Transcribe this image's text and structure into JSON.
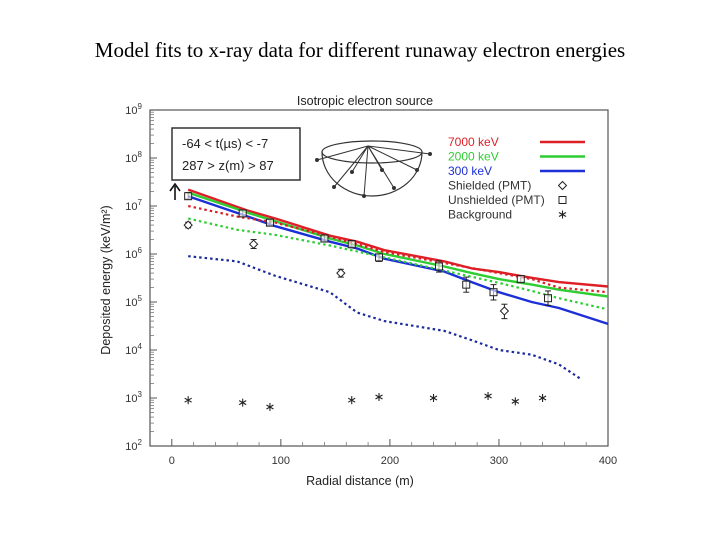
{
  "slide": {
    "title": "Model fits to x-ray data for different runaway electron energies"
  },
  "chart_data": {
    "type": "line",
    "title": "Isotropic electron source",
    "xlabel": "Radial distance (m)",
    "ylabel": "Deposited energy (keV/m²)",
    "xlim": [
      -20,
      400
    ],
    "ylim_log10": [
      2,
      9
    ],
    "y_scale": "log",
    "x_ticks": [
      0,
      100,
      200,
      300,
      400
    ],
    "y_ticks": [
      {
        "exp": 2,
        "base": "10",
        "sup": "2"
      },
      {
        "exp": 3,
        "base": "10",
        "sup": "3"
      },
      {
        "exp": 4,
        "base": "10",
        "sup": "4"
      },
      {
        "exp": 5,
        "base": "10",
        "sup": "5"
      },
      {
        "exp": 6,
        "base": "10",
        "sup": "6"
      },
      {
        "exp": 7,
        "base": "10",
        "sup": "7"
      },
      {
        "exp": 8,
        "base": "10",
        "sup": "8"
      },
      {
        "exp": 9,
        "base": "10",
        "sup": "9"
      }
    ],
    "grid": false,
    "legend_position": "top-right",
    "condition_box": {
      "line1": "-64 < t(µs) < -7",
      "line2": "287 > z(m) > 87"
    },
    "colors": {
      "red": "#dd1f26",
      "green": "#2fcc33",
      "blue": "#1d2fd6",
      "darkblue": "#1c2a9c"
    },
    "series": [
      {
        "name": "7000 keV",
        "kind": "solid",
        "color": "#dd1f26",
        "points": [
          [
            15,
            22000000.0
          ],
          [
            70,
            8000000.0
          ],
          [
            95,
            5500000.0
          ],
          [
            145,
            2400000.0
          ],
          [
            170,
            1800000.0
          ],
          [
            195,
            1200000.0
          ],
          [
            250,
            700000.0
          ],
          [
            275,
            500000.0
          ],
          [
            300,
            420000.0
          ],
          [
            330,
            320000.0
          ],
          [
            355,
            260000.0
          ],
          [
            400,
            210000.0
          ]
        ]
      },
      {
        "name": "2000 keV",
        "kind": "solid",
        "color": "#2fcc33",
        "points": [
          [
            15,
            19000000.0
          ],
          [
            70,
            7200000.0
          ],
          [
            95,
            4800000.0
          ],
          [
            145,
            2100000.0
          ],
          [
            170,
            1500000.0
          ],
          [
            195,
            1000000.0
          ],
          [
            250,
            550000.0
          ],
          [
            275,
            400000.0
          ],
          [
            300,
            300000.0
          ],
          [
            330,
            230000.0
          ],
          [
            355,
            180000.0
          ],
          [
            400,
            130000.0
          ]
        ]
      },
      {
        "name": "300 keV",
        "kind": "solid",
        "color": "#1d2fd6",
        "points": [
          [
            15,
            16000000.0
          ],
          [
            70,
            6000000.0
          ],
          [
            95,
            3800000.0
          ],
          [
            145,
            1800000.0
          ],
          [
            170,
            1300000.0
          ],
          [
            195,
            800000.0
          ],
          [
            250,
            430000.0
          ],
          [
            275,
            260000.0
          ],
          [
            300,
            160000.0
          ],
          [
            330,
            100000.0
          ],
          [
            355,
            75000.0
          ],
          [
            400,
            35000.0
          ]
        ]
      },
      {
        "name": "",
        "kind": "dotted",
        "color": "#dd1f26",
        "points": [
          [
            15,
            10000000.0
          ],
          [
            60,
            6000000.0
          ],
          [
            95,
            4500000.0
          ],
          [
            145,
            2300000.0
          ],
          [
            195,
            1100000.0
          ],
          [
            250,
            650000.0
          ],
          [
            300,
            400000.0
          ],
          [
            330,
            300000.0
          ],
          [
            355,
            200000.0
          ],
          [
            400,
            160000.0
          ]
        ]
      },
      {
        "name": "",
        "kind": "dotted",
        "color": "#2fcc33",
        "points": [
          [
            15,
            5500000.0
          ],
          [
            60,
            3200000.0
          ],
          [
            95,
            2500000.0
          ],
          [
            145,
            1500000.0
          ],
          [
            195,
            850000.0
          ],
          [
            250,
            450000.0
          ],
          [
            300,
            250000.0
          ],
          [
            330,
            170000.0
          ],
          [
            355,
            120000.0
          ],
          [
            400,
            70000.0
          ]
        ]
      },
      {
        "name": "",
        "kind": "dotted",
        "color": "#1c2a9c",
        "points": [
          [
            15,
            900000.0
          ],
          [
            60,
            700000.0
          ],
          [
            95,
            350000.0
          ],
          [
            145,
            160000.0
          ],
          [
            170,
            60000.0
          ],
          [
            195,
            40000.0
          ],
          [
            250,
            25000.0
          ],
          [
            275,
            16000.0
          ],
          [
            300,
            10000.0
          ],
          [
            330,
            8000.0
          ],
          [
            355,
            5000.0
          ],
          [
            375,
            2500.0
          ]
        ]
      }
    ],
    "shielded": {
      "name": "Shielded (PMT)",
      "points": [
        {
          "x": 15,
          "y": 4000000.0,
          "lo": 3500000.0,
          "hi": 4600000.0
        },
        {
          "x": 75,
          "y": 1600000.0,
          "lo": 1300000.0,
          "hi": 2000000.0
        },
        {
          "x": 155,
          "y": 400000.0,
          "lo": 330000.0,
          "hi": 480000.0
        },
        {
          "x": 305,
          "y": 65000.0,
          "lo": 45000.0,
          "hi": 90000.0
        }
      ]
    },
    "unshielded": {
      "name": "Unshielded (PMT)",
      "points": [
        {
          "x": 15,
          "y": 16000000.0,
          "lo": 14000000.0,
          "hi": 19000000.0
        },
        {
          "x": 65,
          "y": 7000000.0,
          "lo": 6000000.0,
          "hi": 8200000.0
        },
        {
          "x": 90,
          "y": 4500000.0,
          "lo": 3900000.0,
          "hi": 5300000.0
        },
        {
          "x": 140,
          "y": 2100000.0,
          "lo": 1800000.0,
          "hi": 2500000.0
        },
        {
          "x": 165,
          "y": 1600000.0,
          "lo": 1350000.0,
          "hi": 1900000.0
        },
        {
          "x": 190,
          "y": 850000.0,
          "lo": 700000.0,
          "hi": 1000000.0
        },
        {
          "x": 245,
          "y": 550000.0,
          "lo": 420000.0,
          "hi": 720000.0
        },
        {
          "x": 270,
          "y": 230000.0,
          "lo": 160000.0,
          "hi": 330000.0
        },
        {
          "x": 295,
          "y": 160000.0,
          "lo": 110000.0,
          "hi": 230000.0
        },
        {
          "x": 320,
          "y": 300000.0,
          "lo": 260000.0,
          "hi": 350000.0
        },
        {
          "x": 345,
          "y": 120000.0,
          "lo": 85000.0,
          "hi": 170000.0
        }
      ]
    },
    "background": {
      "name": "Background",
      "points": [
        [
          15,
          900
        ],
        [
          65,
          800
        ],
        [
          90,
          650
        ],
        [
          165,
          900
        ],
        [
          190,
          1050
        ],
        [
          240,
          1000
        ],
        [
          290,
          1100
        ],
        [
          315,
          850
        ],
        [
          340,
          1000
        ]
      ]
    }
  }
}
